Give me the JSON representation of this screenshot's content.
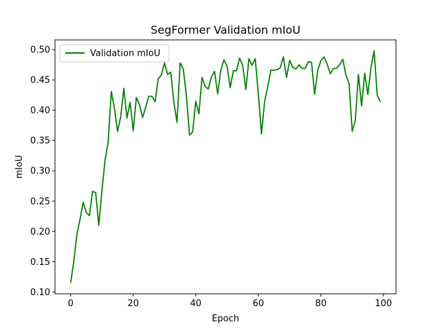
{
  "chart_data": {
    "type": "line",
    "title": "SegFormer Validation mIoU",
    "xlabel": "Epoch",
    "ylabel": "mIoU",
    "xlim": [
      -5,
      104
    ],
    "ylim": [
      0.097,
      0.516
    ],
    "xticks": [
      0,
      20,
      40,
      60,
      80,
      100
    ],
    "yticks": [
      0.1,
      0.15,
      0.2,
      0.25,
      0.3,
      0.35,
      0.4,
      0.45,
      0.5
    ],
    "xtick_labels": [
      "0",
      "20",
      "40",
      "60",
      "80",
      "100"
    ],
    "ytick_labels": [
      "0.10",
      "0.15",
      "0.20",
      "0.25",
      "0.30",
      "0.35",
      "0.40",
      "0.45",
      "0.50"
    ],
    "grid": false,
    "legend_position": "top-left",
    "series": [
      {
        "name": "Validation mIoU",
        "color": "#008000",
        "x": [
          0,
          1,
          2,
          3,
          4,
          5,
          6,
          7,
          8,
          9,
          10,
          11,
          12,
          13,
          14,
          15,
          16,
          17,
          18,
          19,
          20,
          21,
          22,
          23,
          24,
          25,
          26,
          27,
          28,
          29,
          30,
          31,
          32,
          33,
          34,
          35,
          36,
          37,
          38,
          39,
          40,
          41,
          42,
          43,
          44,
          45,
          46,
          47,
          48,
          49,
          50,
          51,
          52,
          53,
          54,
          55,
          56,
          57,
          58,
          59,
          60,
          61,
          62,
          63,
          64,
          65,
          66,
          67,
          68,
          69,
          70,
          71,
          72,
          73,
          74,
          75,
          76,
          77,
          78,
          79,
          80,
          81,
          82,
          83,
          84,
          85,
          86,
          87,
          88,
          89,
          90,
          91,
          92,
          93,
          94,
          95,
          96,
          97,
          98,
          99
        ],
        "y": [
          0.115,
          0.15,
          0.195,
          0.22,
          0.248,
          0.231,
          0.226,
          0.266,
          0.264,
          0.21,
          0.267,
          0.318,
          0.348,
          0.431,
          0.403,
          0.365,
          0.389,
          0.436,
          0.387,
          0.413,
          0.366,
          0.421,
          0.409,
          0.388,
          0.405,
          0.423,
          0.423,
          0.414,
          0.452,
          0.458,
          0.478,
          0.459,
          0.463,
          0.413,
          0.38,
          0.478,
          0.468,
          0.424,
          0.359,
          0.364,
          0.415,
          0.394,
          0.454,
          0.439,
          0.435,
          0.455,
          0.464,
          0.427,
          0.466,
          0.483,
          0.473,
          0.437,
          0.465,
          0.465,
          0.486,
          0.474,
          0.434,
          0.485,
          0.474,
          0.485,
          0.427,
          0.361,
          0.414,
          0.439,
          0.466,
          0.466,
          0.467,
          0.47,
          0.488,
          0.454,
          0.482,
          0.471,
          0.468,
          0.475,
          0.469,
          0.469,
          0.48,
          0.479,
          0.426,
          0.466,
          0.482,
          0.488,
          0.476,
          0.46,
          0.469,
          0.469,
          0.475,
          0.484,
          0.458,
          0.444,
          0.365,
          0.384,
          0.459,
          0.407,
          0.461,
          0.426,
          0.47,
          0.498,
          0.425,
          0.414
        ]
      }
    ]
  }
}
